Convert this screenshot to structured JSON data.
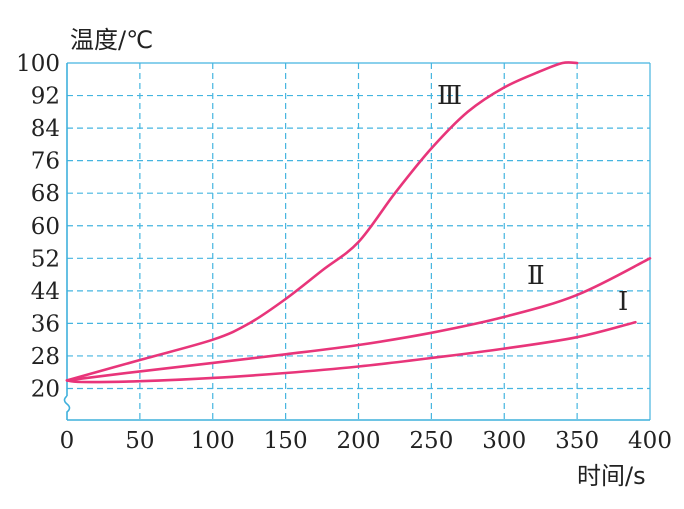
{
  "chart_data": {
    "type": "line",
    "ylabel": "温度/℃",
    "xlabel": "时间/s",
    "x_ticks": [
      "0",
      "50",
      "100",
      "150",
      "200",
      "250",
      "300",
      "350",
      "400"
    ],
    "y_ticks": [
      "20",
      "28",
      "36",
      "44",
      "52",
      "60",
      "68",
      "76",
      "84",
      "92",
      "100"
    ],
    "xlim": [
      0,
      400
    ],
    "ylim": [
      16,
      100
    ],
    "grid": true,
    "grid_style": "dashed",
    "colors": {
      "curve": "#e8357a",
      "grid": "#45b5e0",
      "axis": "#3fb0dc",
      "text": "#222222"
    },
    "series": [
      {
        "name": "Ⅲ",
        "points": [
          [
            0,
            22
          ],
          [
            50,
            27
          ],
          [
            100,
            32
          ],
          [
            125,
            36
          ],
          [
            150,
            42
          ],
          [
            175,
            49
          ],
          [
            200,
            56
          ],
          [
            225,
            68
          ],
          [
            250,
            79
          ],
          [
            275,
            88
          ],
          [
            300,
            94
          ],
          [
            325,
            98
          ],
          [
            340,
            100
          ],
          [
            350,
            100
          ]
        ]
      },
      {
        "name": "Ⅱ",
        "points": [
          [
            0,
            22
          ],
          [
            50,
            24.2
          ],
          [
            100,
            26.3
          ],
          [
            150,
            28.4
          ],
          [
            200,
            30.7
          ],
          [
            250,
            33.7
          ],
          [
            300,
            37.6
          ],
          [
            350,
            43
          ],
          [
            400,
            52
          ]
        ]
      },
      {
        "name": "Ⅰ",
        "points": [
          [
            0,
            22
          ],
          [
            10,
            21.6
          ],
          [
            50,
            21.8
          ],
          [
            100,
            22.6
          ],
          [
            150,
            23.8
          ],
          [
            200,
            25.4
          ],
          [
            250,
            27.5
          ],
          [
            300,
            29.8
          ],
          [
            350,
            32.6
          ],
          [
            390,
            36.3
          ]
        ]
      }
    ]
  }
}
